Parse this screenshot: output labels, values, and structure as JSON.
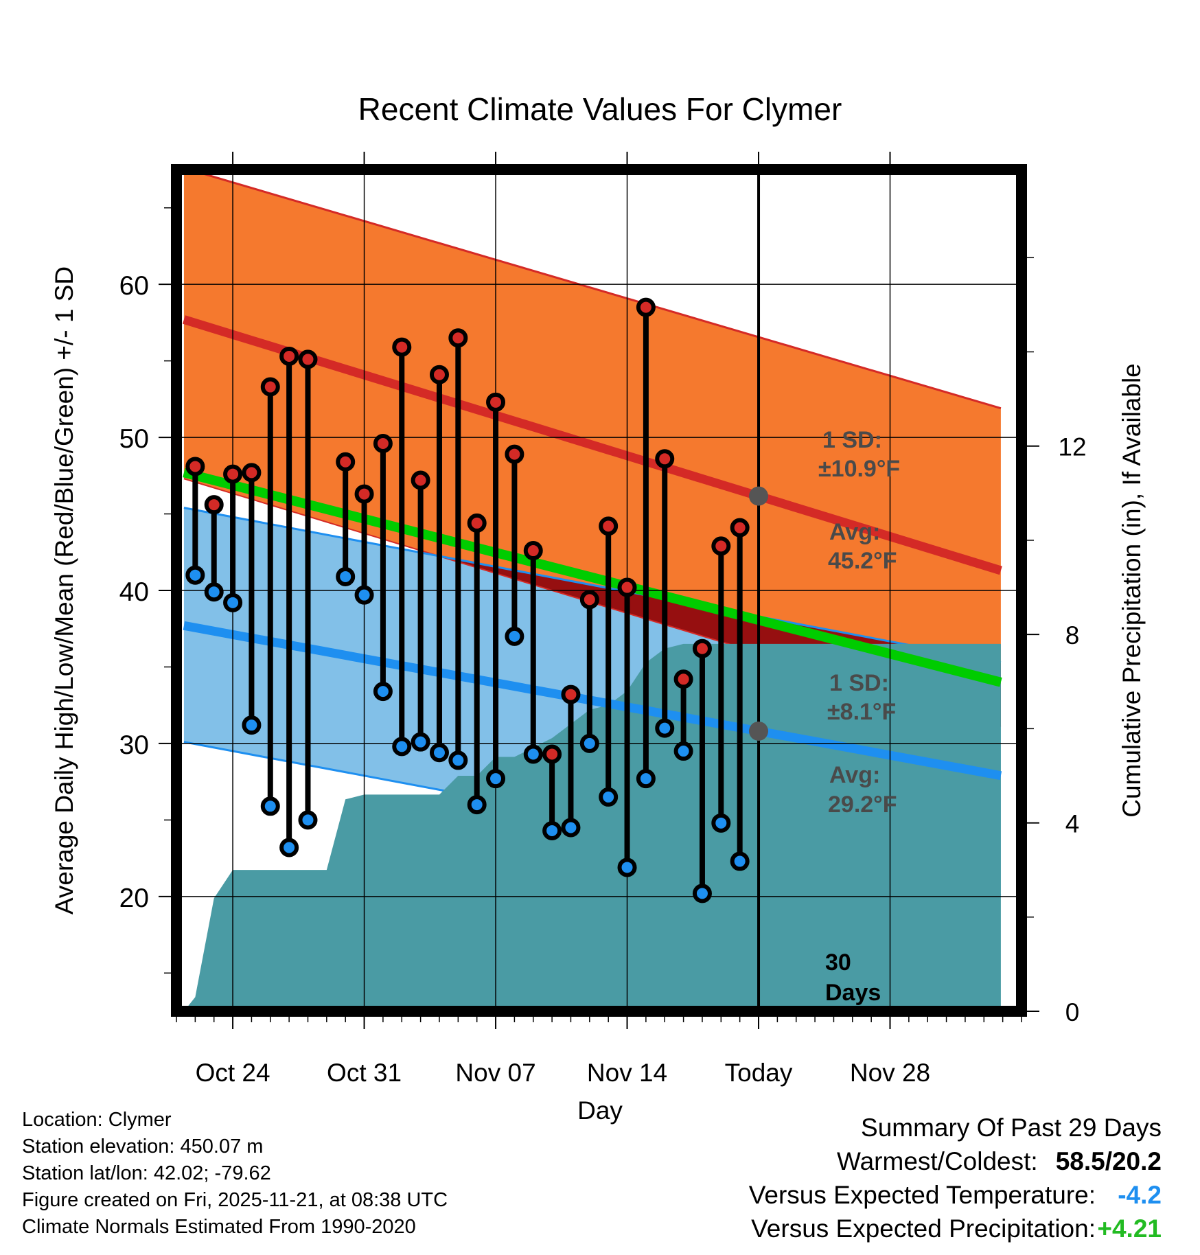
{
  "chart_data": {
    "type": "line",
    "title": "Recent Climate Values For Clymer",
    "xlabel": "Day",
    "ylabel": "Average Daily High/Low/Mean (Red/Blue/Green) +/- 1 SD",
    "y2label": "Cumulative Precipitation (in), If Available",
    "x_range": [
      -3,
      42
    ],
    "ylim": [
      12.5,
      67.5
    ],
    "y2lim": [
      0,
      17.87
    ],
    "x_ticks": [
      0,
      7,
      14,
      21,
      28,
      35
    ],
    "x_tick_labels": [
      "Oct 24",
      "Oct 31",
      "Nov 07",
      "Nov 14",
      "Today",
      "Nov 28"
    ],
    "y_ticks": [
      20,
      30,
      40,
      50,
      60
    ],
    "y2_ticks": [
      0,
      4,
      8,
      12
    ],
    "today_index": 28,
    "today_label": "30\nDays",
    "normals": {
      "x": [
        -2.6,
        40.9
      ],
      "high_avg": [
        57.7,
        41.3
      ],
      "high_upper": [
        67.6,
        51.9
      ],
      "high_lower": [
        47.3,
        31.1
      ],
      "low_avg": [
        37.7,
        27.9
      ],
      "low_upper": [
        45.4,
        35.3
      ],
      "low_lower": [
        30.1,
        20.1
      ],
      "mean_avg": [
        47.7,
        34.0
      ],
      "line_colors": {
        "high": "#d42a26",
        "low": "#1e8ff0",
        "mean": "#00cc00"
      },
      "fill_colors": {
        "high_band": "#f5792e",
        "low_band": "#82c0e8",
        "overlap": "#960f10",
        "precip": "#4a9ba4"
      }
    },
    "annotations": {
      "high_sd": "1 SD:",
      "high_sd_val": "±10.9°F",
      "high_avg_label": "Avg:",
      "high_avg_val": "45.2°F",
      "low_sd": "1 SD:",
      "low_sd_val": "±8.1°F",
      "low_avg_label": "Avg:",
      "low_avg_val": "29.2°F"
    },
    "daily": {
      "x": [
        -2,
        -1,
        0,
        1,
        2,
        3,
        4,
        6,
        7,
        8,
        9,
        10,
        11,
        12,
        13,
        14,
        15,
        16,
        17,
        18,
        19,
        20,
        21,
        22,
        23,
        24,
        25,
        26,
        27
      ],
      "high": [
        48.1,
        45.6,
        47.6,
        47.7,
        53.3,
        55.3,
        55.1,
        48.4,
        46.3,
        49.6,
        55.9,
        47.2,
        54.1,
        56.5,
        44.4,
        52.3,
        48.9,
        42.6,
        29.3,
        33.2,
        39.4,
        44.2,
        40.2,
        58.5,
        48.6,
        34.2,
        36.2,
        42.9,
        44.1
      ],
      "low": [
        41.0,
        39.9,
        39.2,
        31.2,
        25.9,
        23.2,
        25.0,
        40.9,
        39.7,
        33.4,
        29.8,
        30.1,
        29.4,
        28.9,
        26.0,
        27.7,
        37.0,
        29.3,
        24.3,
        24.5,
        30.0,
        26.5,
        21.9,
        27.7,
        31.0,
        29.5,
        20.2,
        24.8,
        22.3
      ]
    },
    "precip_cumulative": {
      "x": [
        -2.6,
        -2,
        -1,
        0,
        1,
        2,
        3,
        4,
        5,
        6,
        7,
        8,
        9,
        10,
        11,
        12,
        13,
        14,
        15,
        16,
        17,
        18,
        19,
        20,
        21,
        22,
        23,
        24,
        25,
        26,
        27,
        28,
        40.9
      ],
      "values": [
        0,
        0.3,
        2.4,
        3.0,
        3.0,
        3.0,
        3.0,
        3.0,
        3.0,
        4.5,
        4.6,
        4.6,
        4.6,
        4.6,
        4.6,
        5.0,
        5.0,
        5.4,
        5.4,
        5.6,
        5.8,
        6.1,
        6.4,
        6.5,
        6.8,
        7.4,
        7.7,
        7.8,
        7.8,
        7.8,
        7.8,
        7.8,
        7.8
      ]
    }
  },
  "footer": {
    "location": "Location: Clymer",
    "elevation": "Station elevation: 450.07 m",
    "latlon": "Station lat/lon: 42.02; -79.62",
    "created": "Figure created on Fri, 2025-11-21, at 08:38 UTC",
    "normals_period": "Climate Normals Estimated From 1990-2020"
  },
  "summary": {
    "title": "Summary Of Past 29 Days",
    "warm_cold_label": "Warmest/Coldest:",
    "warm_cold_value": "58.5/20.2",
    "temp_label": "Versus Expected Temperature:",
    "temp_value": "-4.2",
    "temp_color": "#1e8ff0",
    "precip_label": "Versus Expected Precipitation:",
    "precip_value": "+4.21",
    "precip_color": "#22bb22"
  }
}
